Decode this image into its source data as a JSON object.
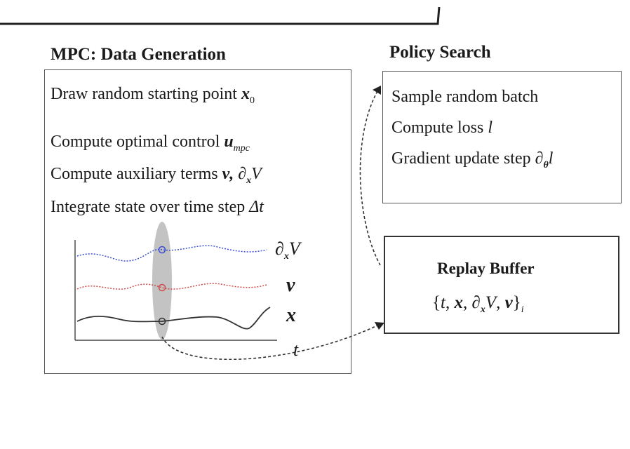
{
  "mpc": {
    "title": "MPC: Data Generation",
    "steps": [
      {
        "text": "Draw random starting point ",
        "math": "x",
        "sub": "0"
      },
      {
        "text": "Compute optimal control ",
        "math": "u",
        "sub": "mpc"
      },
      {
        "text": "Compute auxiliary terms ",
        "math": "ν, ∂",
        "sub": "x",
        "tail": "V"
      },
      {
        "text": "Integrate state over time step ",
        "math": "Δt",
        "sub": ""
      }
    ],
    "plot": {
      "series_labels": [
        "∂",
        "ν",
        "x"
      ],
      "dV_sub": "x",
      "dV_tail": "V",
      "time_label": "t"
    }
  },
  "policy": {
    "title": "Policy Search",
    "steps": [
      {
        "text": "Sample random batch",
        "math": ""
      },
      {
        "text": "Compute loss ",
        "math": "l"
      },
      {
        "text": "Gradient update step ",
        "math": "∂",
        "sub": "θ",
        "tail": "l"
      }
    ]
  },
  "buffer": {
    "title": "Replay Buffer",
    "content": "{t, x, ∂xV, ν}i",
    "parts": [
      "{",
      "t",
      ", ",
      "x",
      ", ",
      "∂",
      "x",
      "V",
      ", ",
      "ν",
      "}",
      "i"
    ]
  },
  "colors": {
    "dV_series": "#3b4fd1",
    "nu_series": "#d14a4a",
    "x_series": "#333333",
    "highlight": "#b8b8b8",
    "border": "#555555"
  }
}
